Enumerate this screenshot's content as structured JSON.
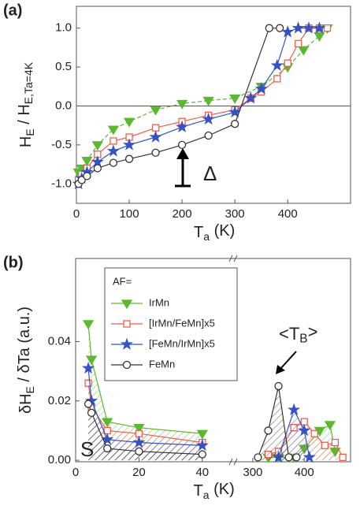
{
  "chart_data": [
    {
      "type": "line",
      "panel_label": "(a)",
      "xlabel": [
        "T",
        "a",
        " (K)"
      ],
      "ylabel": [
        "H",
        "E",
        " / H",
        "E,Ta=4K"
      ],
      "annotation": "Δ",
      "xlim": [
        0,
        519
      ],
      "ylim": [
        -1.25,
        1.28
      ],
      "xticks": [
        0,
        100,
        200,
        300,
        400
      ],
      "yticks": [
        {
          "value": -1,
          "label": "-1.0"
        },
        {
          "value": -0.5,
          "label": "-0.5"
        },
        {
          "value": 0,
          "label": "0.0"
        },
        {
          "value": 0.5,
          "label": "0.5"
        },
        {
          "value": 1,
          "label": "1.0"
        }
      ],
      "series": [
        {
          "color": "#5cb82e",
          "marker": "triangle-down",
          "x": [
            4,
            10,
            20,
            40,
            70,
            100,
            150,
            200,
            250,
            300,
            350,
            400,
            430,
            460,
            475
          ],
          "values": [
            -0.85,
            -0.8,
            -0.7,
            -0.5,
            -0.3,
            -0.2,
            -0.05,
            0.03,
            0.07,
            0.1,
            0.25,
            0.5,
            0.72,
            0.9,
            1.0
          ]
        },
        {
          "color": "#f25c4a",
          "marker": "square",
          "x": [
            4,
            10,
            20,
            40,
            70,
            100,
            150,
            200,
            250,
            300,
            330,
            350,
            380,
            400,
            420,
            440,
            460,
            475
          ],
          "values": [
            -0.95,
            -0.88,
            -0.8,
            -0.62,
            -0.45,
            -0.4,
            -0.28,
            -0.2,
            -0.12,
            -0.05,
            0.1,
            0.18,
            0.35,
            0.55,
            0.8,
            1.0,
            1.0,
            1.0
          ]
        },
        {
          "color": "#3553c4",
          "marker": "star",
          "x": [
            4,
            10,
            20,
            40,
            70,
            100,
            150,
            200,
            250,
            300,
            330,
            350,
            380,
            400,
            420,
            440,
            460
          ],
          "values": [
            -1.0,
            -0.93,
            -0.85,
            -0.72,
            -0.58,
            -0.5,
            -0.4,
            -0.27,
            -0.17,
            -0.08,
            0.1,
            0.22,
            0.52,
            0.95,
            1.0,
            1.0,
            1.0
          ]
        },
        {
          "color": "#333333",
          "marker": "circle",
          "x": [
            4,
            10,
            20,
            40,
            70,
            100,
            150,
            200,
            250,
            300,
            365,
            385
          ],
          "values": [
            -1.0,
            -0.95,
            -0.9,
            -0.8,
            -0.73,
            -0.68,
            -0.6,
            -0.5,
            -0.38,
            -0.23,
            1.0,
            1.0
          ]
        }
      ]
    },
    {
      "type": "line",
      "panel_label": "(b)",
      "xlabel": [
        "T",
        "a",
        " (K)"
      ],
      "ylabel": [
        "δH",
        "E",
        " / δTa (a.u.)"
      ],
      "annotations": [
        [
          "<T",
          "B",
          ">"
        ],
        "S"
      ],
      "legend": "upper center",
      "legend_title": "AF=",
      "hatch": true,
      "xlim": [
        0,
        49
      ],
      "xlim2": [
        268,
        490
      ],
      "ylim": [
        -0.0005,
        0.068
      ],
      "xticks": [
        0,
        20,
        40
      ],
      "xticks2": [
        300,
        400
      ],
      "yticks": [
        {
          "value": 0,
          "label": "0.00"
        },
        {
          "value": 0.02,
          "label": "0.02"
        },
        {
          "value": 0.04,
          "label": "0.04"
        }
      ],
      "series": [
        {
          "name": "IrMn",
          "color": "#5cb82e",
          "marker": "triangle-down",
          "x": [
            4,
            5,
            10,
            20,
            40
          ],
          "values": [
            0.046,
            0.034,
            0.013,
            0.011,
            0.009
          ],
          "x2": [
            330,
            350,
            380,
            400,
            430,
            450,
            460
          ],
          "values2": [
            0.001,
            0.001,
            0.001,
            0.004,
            0.01,
            0.012,
            0.003
          ]
        },
        {
          "name": "[IrMn/FeMn]x5",
          "color": "#f25c4a",
          "marker": "square",
          "x": [
            4,
            5,
            10,
            20,
            40
          ],
          "values": [
            0.026,
            0.018,
            0.01,
            0.009,
            0.006
          ],
          "x2": [
            330,
            350,
            380,
            400,
            420,
            440,
            460,
            475
          ],
          "values2": [
            0.002,
            0.003,
            0.011,
            0.013,
            0.009,
            0.005,
            0.006,
            0.001
          ]
        },
        {
          "name": "[FeMn/IrMn]x5",
          "color": "#3553c4",
          "marker": "star",
          "x": [
            4,
            5,
            10,
            20,
            40
          ],
          "values": [
            0.031,
            0.02,
            0.007,
            0.006,
            0.005
          ],
          "x2": [
            350,
            380,
            400,
            410
          ],
          "values2": [
            0.001,
            0.017,
            0.01,
            0.001
          ]
        },
        {
          "name": "FeMn",
          "color": "#333333",
          "marker": "circle",
          "x": [
            4,
            5,
            10,
            20,
            40
          ],
          "values": [
            0.019,
            0.016,
            0.004,
            0.003,
            0.002
          ],
          "x2": [
            310,
            330,
            350,
            370,
            385
          ],
          "values2": [
            0.001,
            0.01,
            0.025,
            0.001,
            0.001
          ]
        }
      ]
    }
  ]
}
